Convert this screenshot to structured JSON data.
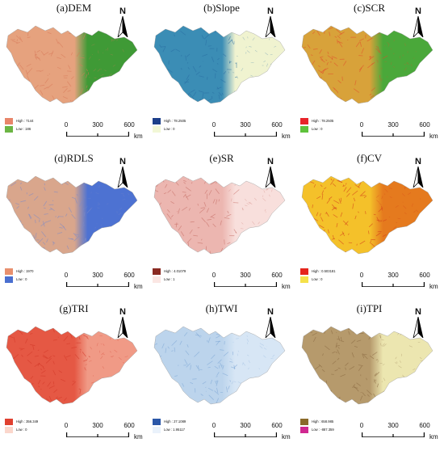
{
  "panels": [
    {
      "title": "(a)DEM",
      "high": "High : 7144",
      "low": "Low : 186",
      "hi_color": "#e8856a",
      "lo_color": "#6cb544",
      "west": "#e6a27e",
      "east": "#3f9a36",
      "texture": "#d87a5a"
    },
    {
      "title": "(b)Slope",
      "high": "High : 78.2505",
      "low": "Low : 0",
      "hi_color": "#1d3f8a",
      "lo_color": "#f2f7d6",
      "west": "#3b8db5",
      "east": "#f0f3d0",
      "texture": "#2a6ea3"
    },
    {
      "title": "(c)SCR",
      "high": "High : 78.2505",
      "low": "Low : 0",
      "hi_color": "#e8242a",
      "lo_color": "#5fc23c",
      "west": "#d8a23a",
      "east": "#4aa83a",
      "texture": "#e24b2b"
    },
    {
      "title": "(d)RDLS",
      "high": "High : 1970",
      "low": "Low : 0",
      "hi_color": "#e8906e",
      "lo_color": "#4a6fd0",
      "west": "#d9a68c",
      "east": "#4d72d2",
      "texture": "#7d8bc9"
    },
    {
      "title": "(e)SR",
      "high": "High : 4.01079",
      "low": "Low : 1",
      "hi_color": "#8a2a22",
      "lo_color": "#fbe6e3",
      "west": "#ecb6b0",
      "east": "#f8dfdc",
      "texture": "#c66e66"
    },
    {
      "title": "(f)CV",
      "high": "High : 0.503181",
      "low": "Low : 0",
      "hi_color": "#e5241c",
      "lo_color": "#f5e14a",
      "west": "#f4c12a",
      "east": "#e57a1e",
      "texture": "#d23a1a"
    },
    {
      "title": "(g)TRI",
      "high": "High : 356.349",
      "low": "Low : 0",
      "hi_color": "#e04030",
      "lo_color": "#fbd7cc",
      "west": "#e55844",
      "east": "#f09a86",
      "texture": "#d23828"
    },
    {
      "title": "(h)TWI",
      "high": "High : 27.1089",
      "low": "Low : 1.95117",
      "hi_color": "#2b57a8",
      "lo_color": "#eaf2fb",
      "west": "#bcd4ec",
      "east": "#d7e6f5",
      "texture": "#7ea7d6"
    },
    {
      "title": "(i)TPI",
      "high": "High : 658.985",
      "low": "Low : -887.359",
      "hi_color": "#8a6a2a",
      "lo_color": "#d02890",
      "west": "#b69a6c",
      "east": "#ece6b0",
      "texture": "#8a6a42"
    }
  ],
  "north_label": "N",
  "scale": {
    "ticks": [
      "0",
      "300",
      "600"
    ],
    "unit": "km"
  }
}
